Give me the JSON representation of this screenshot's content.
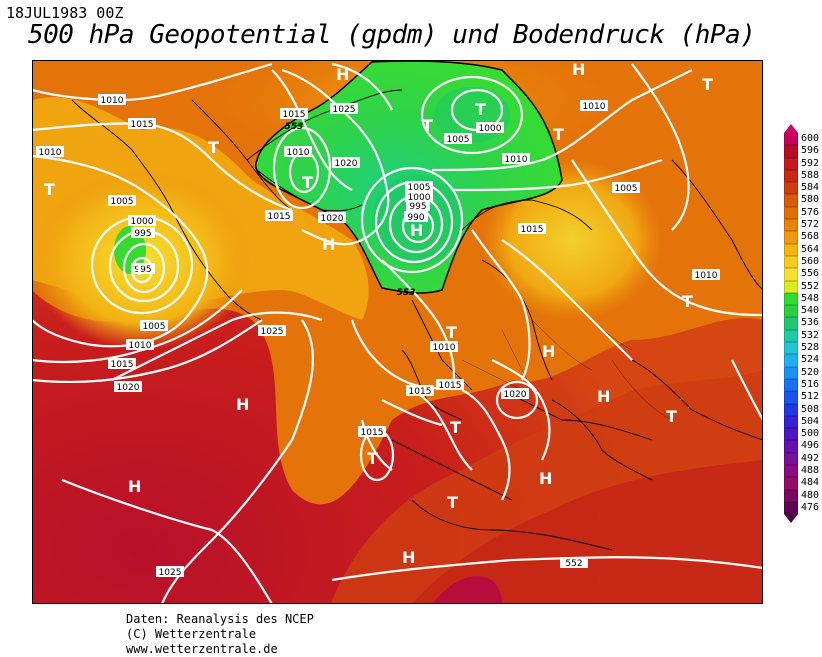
{
  "header": {
    "date": "18JUL1983 00Z",
    "title": "500 hPa Geopotential (gpdm) und Bodendruck (hPa)"
  },
  "legend": {
    "values": [
      "600",
      "596",
      "592",
      "588",
      "584",
      "580",
      "576",
      "572",
      "568",
      "564",
      "560",
      "556",
      "552",
      "548",
      "540",
      "536",
      "532",
      "528",
      "524",
      "520",
      "516",
      "512",
      "508",
      "504",
      "500",
      "496",
      "492",
      "488",
      "484",
      "480",
      "476"
    ],
    "colors": [
      "#c8005a",
      "#b40f28",
      "#c21a1e",
      "#c82a14",
      "#d03c10",
      "#d95a0c",
      "#e16e0a",
      "#e8820a",
      "#ee9a0e",
      "#f3b514",
      "#f6cb20",
      "#f8e030",
      "#d8ec20",
      "#30dc30",
      "#2ad040",
      "#20c670",
      "#1ccaa6",
      "#22c6d2",
      "#20b0f0",
      "#1c90f6",
      "#1a70f4",
      "#1c52ee",
      "#2038e4",
      "#3422d4",
      "#4c16c4",
      "#6210b0",
      "#780e9a",
      "#8a0c82",
      "#960a6a",
      "#7a0a60",
      "#5a0850"
    ]
  },
  "map": {
    "isobars": {
      "unit": "hPa",
      "labels": [
        "1010",
        "1015",
        "1010",
        "1005",
        "1000",
        "995",
        "995",
        "1005",
        "1010",
        "1015",
        "1020",
        "1025",
        "1015",
        "553",
        "1010",
        "1020",
        "1025",
        "1015",
        "1020",
        "1005",
        "1000",
        "995",
        "990",
        "1000",
        "1005",
        "1010",
        "1005",
        "553",
        "1015",
        "1010",
        "1010",
        "1015",
        "1015",
        "1020",
        "1015",
        "1025",
        "1010",
        "552"
      ]
    },
    "pressure_centers": [
      "T",
      "T",
      "H",
      "T",
      "H",
      "T",
      "T",
      "T",
      "H",
      "T",
      "T",
      "H",
      "H",
      "T",
      "T",
      "H",
      "T",
      "H",
      "T",
      "T",
      "H",
      "T",
      "H",
      "H"
    ]
  },
  "footer": {
    "line1": "Daten: Reanalysis des NCEP",
    "line2": "(C) Wetterzentrale",
    "line3": "www.wetterzentrale.de"
  }
}
